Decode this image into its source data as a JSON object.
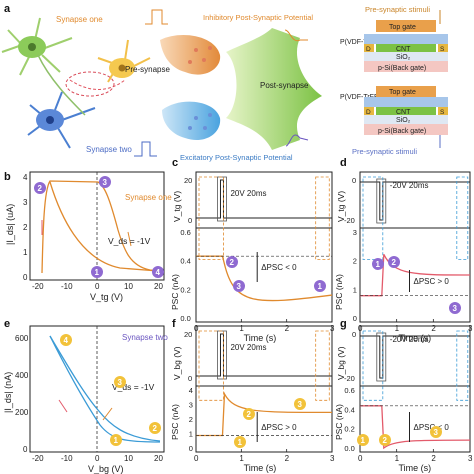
{
  "panel_labels": {
    "a": "a",
    "b": "b",
    "c": "c",
    "d": "d",
    "e": "e",
    "f": "f",
    "g": "g"
  },
  "panel_a": {
    "synapse_one": "Synapse one",
    "synapse_two": "Synapse two",
    "pre_synapse": "Pre-synapse",
    "post_synapse": "Post-synapse",
    "ipsp": "Inhibitory Post-Synaptic Potential",
    "epsp": "Excitatory Post-Synaptic Potential",
    "pre_synaptic_stimuli_top": "Pre-synaptic stimuli",
    "pre_synaptic_stimuli_bottom": "Pre-synaptic stimuli",
    "device_top": {
      "top_gate": "Top gate",
      "pvdf": "P(VDF-TrFE)",
      "d": "D",
      "cnt": "CNT",
      "s": "S",
      "sio2": "SiO₂",
      "psi": "p-Si(Back gate)"
    },
    "device_bottom": {
      "pvdf": "P(VDF-TrFE)",
      "top_gate": "Top gate",
      "d": "D",
      "cnt": "CNT",
      "s": "S",
      "sio2": "SiO₂",
      "psi": "p-Si(Back gate)"
    }
  },
  "panel_b": {
    "ylabel": "|I_ds| (uA)",
    "xlabel": "V_tg (V)",
    "legend": "Synapse one",
    "vds": "V_ds = -1V",
    "xticks": [
      "-20",
      "-10",
      "0",
      "10",
      "20"
    ],
    "yticks": [
      "0",
      "1",
      "2",
      "3",
      "4"
    ],
    "markers": [
      "1",
      "2",
      "3",
      "4"
    ]
  },
  "panel_c": {
    "ylabel_top": "V_tg (V)",
    "ylabel_bottom": "PSC (nA)",
    "xlabel": "Time (s)",
    "pulse": "20V 20ms",
    "delta": "ΔPSC < 0",
    "yticks_top": [
      "0",
      "20"
    ],
    "yticks_bottom": [
      "0.0",
      "0.2",
      "0.4",
      "0.6"
    ],
    "xticks": [
      "0",
      "1",
      "2",
      "3"
    ],
    "markers": [
      "1",
      "2",
      "3"
    ]
  },
  "panel_d": {
    "ylabel_top": "V_tg (V)",
    "ylabel_bottom": "PSC (nA)",
    "xlabel": "Time (s)",
    "pulse": "-20V 20ms",
    "delta": "ΔPSC > 0",
    "yticks_top": [
      "-20",
      "0"
    ],
    "yticks_bottom": [
      "0",
      "1",
      "2",
      "3"
    ],
    "xticks": [
      "0",
      "1",
      "2",
      "3"
    ],
    "markers": [
      "1",
      "2",
      "3"
    ]
  },
  "panel_e": {
    "ylabel": "|I_ds| (nA)",
    "xlabel": "V_bg (V)",
    "legend": "Synapse two",
    "vds": "V_ds = -1V",
    "xticks": [
      "-20",
      "-10",
      "0",
      "10",
      "20"
    ],
    "yticks": [
      "0",
      "200",
      "400",
      "600"
    ],
    "markers": [
      "1",
      "2",
      "3",
      "4"
    ]
  },
  "panel_f": {
    "ylabel_top": "V_bg (V)",
    "ylabel_bottom": "PSC (nA)",
    "xlabel": "Time (s)",
    "pulse": "20V 20ms",
    "delta": "ΔPSC > 0",
    "yticks_top": [
      "0",
      "20"
    ],
    "yticks_bottom": [
      "0",
      "1",
      "2",
      "3",
      "4"
    ],
    "xticks": [
      "0",
      "1",
      "2",
      "3"
    ],
    "markers": [
      "1",
      "2",
      "3"
    ]
  },
  "panel_g": {
    "ylabel_top": "V_bg (V)",
    "ylabel_bottom": "PSC (nA)",
    "xlabel": "Time (s)",
    "pulse": "-20V 20ms",
    "delta": "ΔPSC < 0",
    "yticks_top": [
      "-20",
      "0"
    ],
    "yticks_bottom": [
      "0.0",
      "0.2",
      "0.4",
      "0.6"
    ],
    "xticks": [
      "0",
      "1",
      "2",
      "3"
    ],
    "markers": [
      "1",
      "2",
      "3"
    ]
  },
  "colors": {
    "orange": "#e08a2e",
    "blue": "#3b9bd6",
    "purple": "#8f6ad1",
    "pink": "#e35b6b",
    "marker_yellow": "#f2c23a"
  }
}
